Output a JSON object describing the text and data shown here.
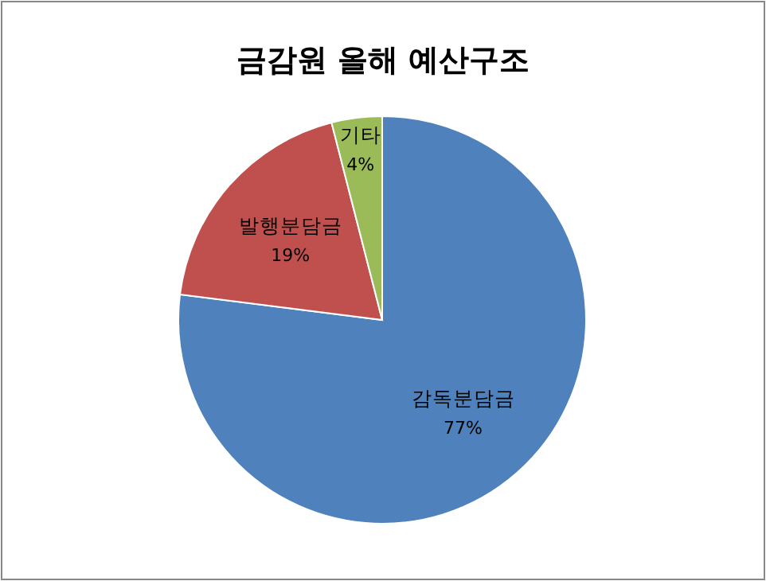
{
  "chart_data": {
    "type": "pie",
    "title": "금감원 올해 예산구조",
    "categories": [
      "감독분담금",
      "발행분담금",
      "기타"
    ],
    "values": [
      77,
      19,
      4
    ],
    "colors": [
      "#4f81bd",
      "#c0504d",
      "#9bbb59"
    ],
    "value_labels": [
      "77%",
      "19%",
      "4%"
    ]
  }
}
